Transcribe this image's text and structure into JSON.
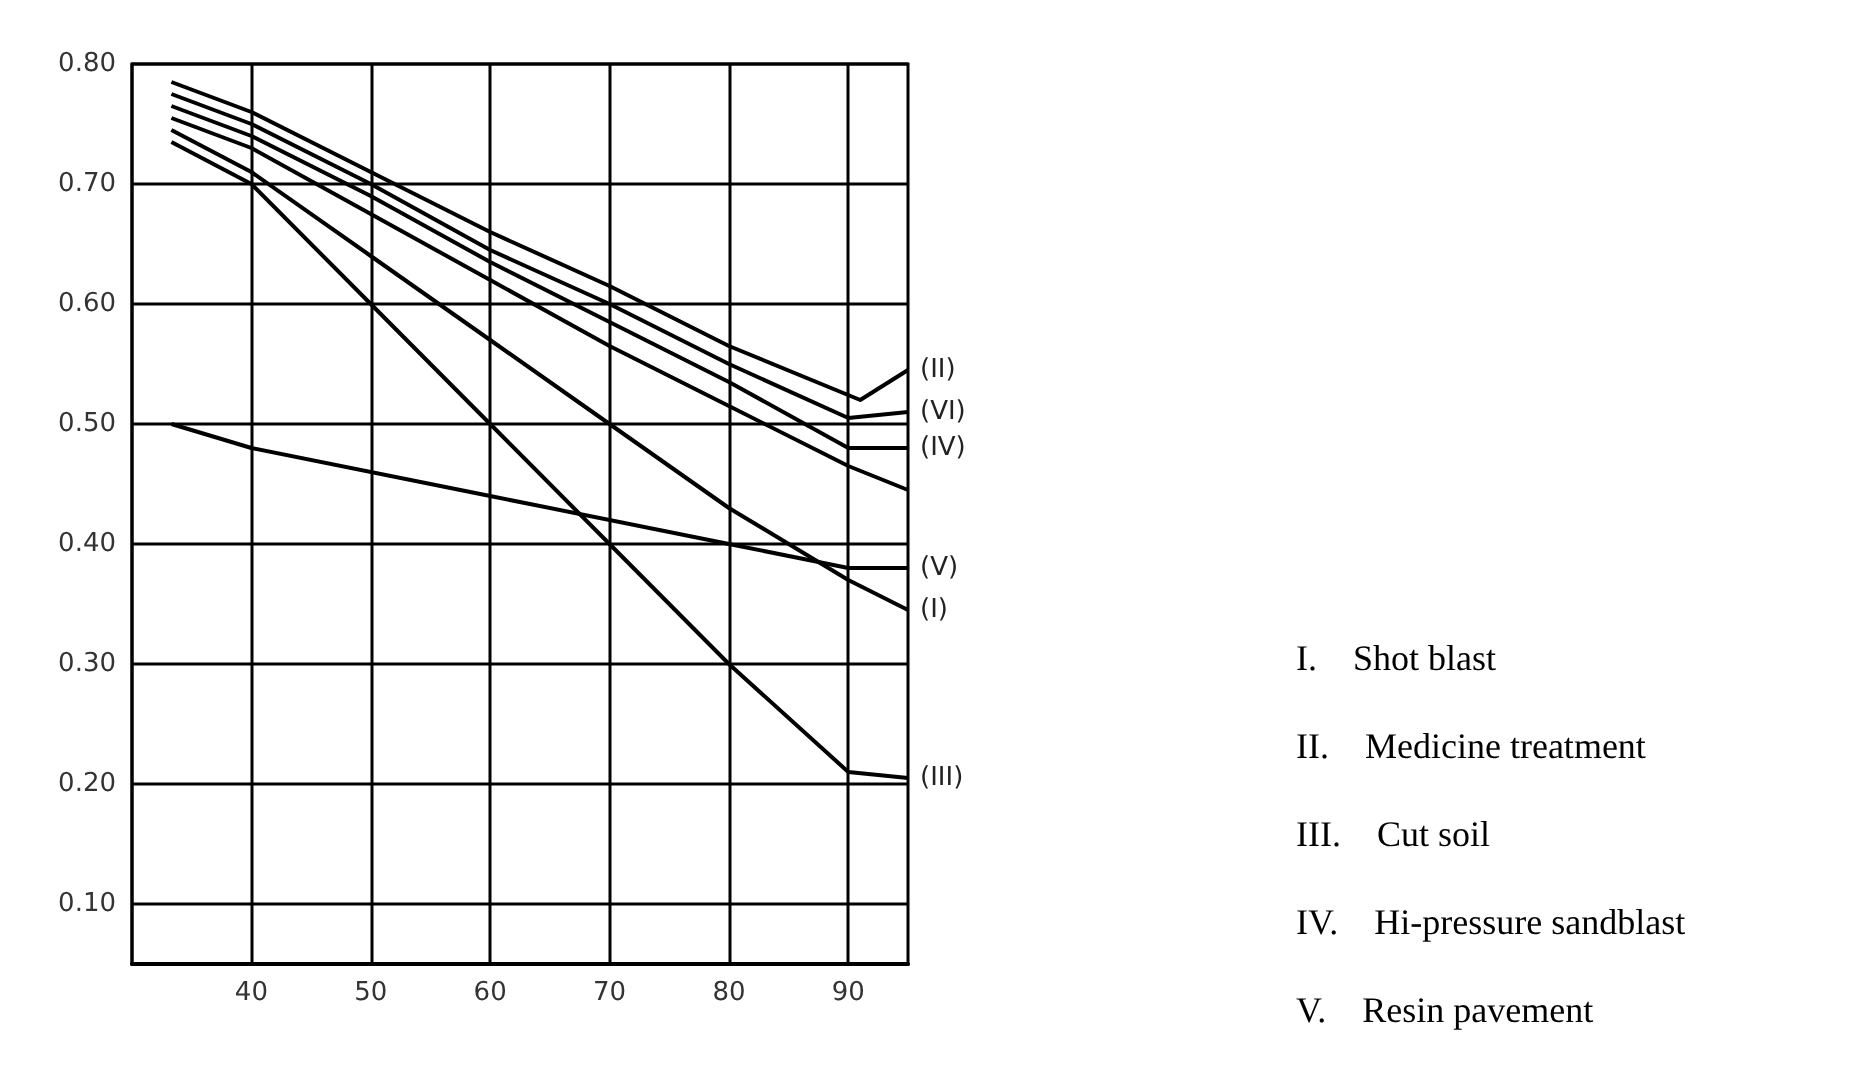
{
  "chart_data": {
    "type": "line",
    "xlim": [
      30,
      95
    ],
    "xticks": [
      40,
      50,
      60,
      70,
      80,
      90
    ],
    "ylim": [
      0.05,
      0.8
    ],
    "yticks": [
      {
        "value": 0.1,
        "label": "0.10"
      },
      {
        "value": 0.2,
        "label": "0.20"
      },
      {
        "value": 0.3,
        "label": "0.30"
      },
      {
        "value": 0.4,
        "label": "0.40"
      },
      {
        "value": 0.5,
        "label": "0.50"
      },
      {
        "value": 0.6,
        "label": "0.60"
      },
      {
        "value": 0.7,
        "label": "0.70"
      },
      {
        "value": 0.8,
        "label": "0.80"
      }
    ],
    "grid": true,
    "legend": false,
    "marker": "none",
    "line_style": "solid",
    "series": [
      {
        "name": "(II)",
        "color": "#000000",
        "x": [
          33.3,
          40,
          50,
          60,
          70,
          80,
          91,
          95
        ],
        "values": [
          0.785,
          0.76,
          0.71,
          0.66,
          0.615,
          0.565,
          0.52,
          0.545
        ]
      },
      {
        "name": "(VI)",
        "color": "#000000",
        "x": [
          33.3,
          40,
          50,
          60,
          70,
          80,
          90,
          95
        ],
        "values": [
          0.775,
          0.75,
          0.7,
          0.645,
          0.6,
          0.55,
          0.505,
          0.51
        ]
      },
      {
        "name": "(IV)",
        "color": "#000000",
        "x": [
          33.3,
          40,
          50,
          60,
          70,
          80,
          90,
          95
        ],
        "values": [
          0.765,
          0.74,
          0.69,
          0.635,
          0.585,
          0.535,
          0.48,
          0.48
        ]
      },
      {
        "color": "#000000",
        "x": [
          33.3,
          40,
          50,
          60,
          70,
          80,
          90,
          95
        ],
        "values": [
          0.755,
          0.73,
          0.675,
          0.62,
          0.565,
          0.515,
          0.465,
          0.445
        ]
      },
      {
        "name": "(V)",
        "color": "#000000",
        "x": [
          33.3,
          40,
          60,
          80,
          90,
          95
        ],
        "values": [
          0.5,
          0.48,
          0.44,
          0.4,
          0.38,
          0.38
        ]
      },
      {
        "name": "(I)",
        "color": "#000000",
        "x": [
          33.3,
          40,
          50,
          60,
          70,
          80,
          90,
          95
        ],
        "values": [
          0.745,
          0.71,
          0.64,
          0.57,
          0.5,
          0.43,
          0.37,
          0.345
        ]
      },
      {
        "name": "(III)",
        "color": "#000000",
        "x": [
          33.3,
          40,
          50,
          60,
          70,
          80,
          90,
          95
        ],
        "values": [
          0.735,
          0.7,
          0.6,
          0.5,
          0.4,
          0.3,
          0.21,
          0.205
        ]
      }
    ],
    "annotations": [
      "I. Shot blast",
      "II. Medicine treatment",
      "III. Cut soil",
      "IV. Hi-pressure sandblast",
      "V. Resin pavement"
    ]
  }
}
